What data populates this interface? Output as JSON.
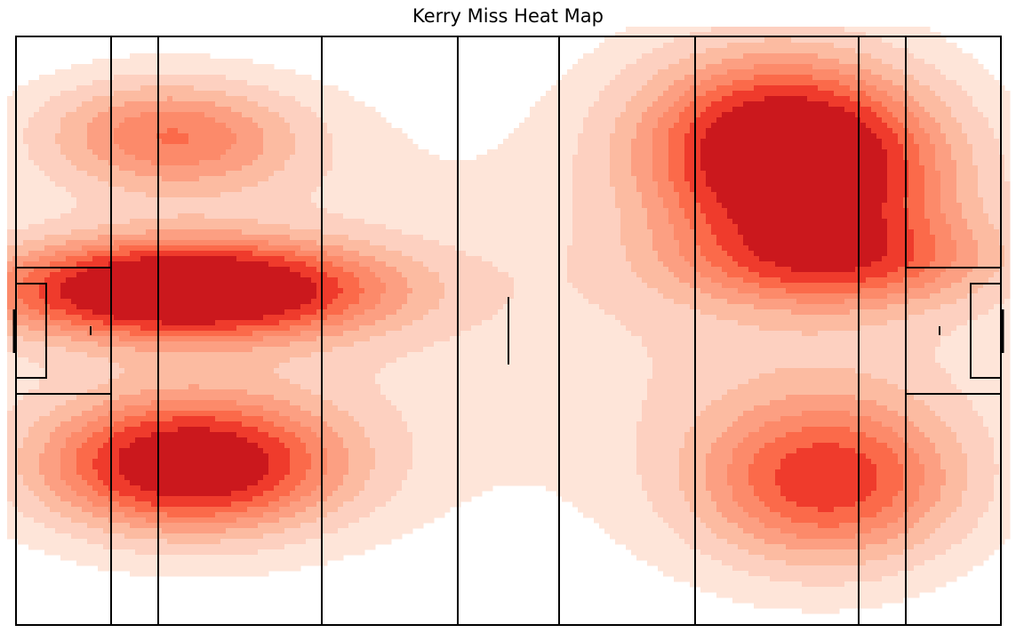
{
  "chart_data": {
    "type": "heatmap",
    "title": "Kerry Miss Heat Map",
    "xlabel": "",
    "ylabel": "",
    "colormap": [
      "#fee5d9",
      "#fdd0c0",
      "#fcbba1",
      "#fc9f82",
      "#fc8a6a",
      "#fb6a4a",
      "#ef3b2c",
      "#cb181d",
      "#99000d"
    ],
    "pitch_line_color": "#000000",
    "axes_visible": false,
    "grid": false,
    "kde_hotspots": [
      {
        "name": "left-top",
        "x": 0.158,
        "y": 0.168,
        "sx": 0.09,
        "sy": 0.065,
        "w": 0.45,
        "r": 0.08
      },
      {
        "name": "left-middle",
        "x": 0.172,
        "y": 0.43,
        "sx": 0.13,
        "sy": 0.055,
        "w": 1.0,
        "r": 0.0
      },
      {
        "name": "left-bottom",
        "x": 0.178,
        "y": 0.728,
        "sx": 0.1,
        "sy": 0.075,
        "w": 0.85,
        "r": 0.0
      },
      {
        "name": "right-top",
        "x": 0.79,
        "y": 0.205,
        "sx": 0.095,
        "sy": 0.11,
        "w": 1.0,
        "r": -0.35
      },
      {
        "name": "right-middle",
        "x": 0.835,
        "y": 0.38,
        "sx": 0.11,
        "sy": 0.055,
        "w": 0.4,
        "r": 0.0
      },
      {
        "name": "right-bottom",
        "x": 0.825,
        "y": 0.755,
        "sx": 0.09,
        "sy": 0.095,
        "w": 0.6,
        "r": 0.0
      },
      {
        "name": "spread-left",
        "x": 0.2,
        "y": 0.5,
        "sx": 0.22,
        "sy": 0.3,
        "w": 0.18,
        "r": 0.0
      },
      {
        "name": "spread-right",
        "x": 0.79,
        "y": 0.45,
        "sx": 0.2,
        "sy": 0.34,
        "w": 0.2,
        "r": 0.0
      }
    ],
    "contour_levels": [
      0.1,
      0.18,
      0.27,
      0.36,
      0.45,
      0.54,
      0.64,
      0.76
    ]
  }
}
